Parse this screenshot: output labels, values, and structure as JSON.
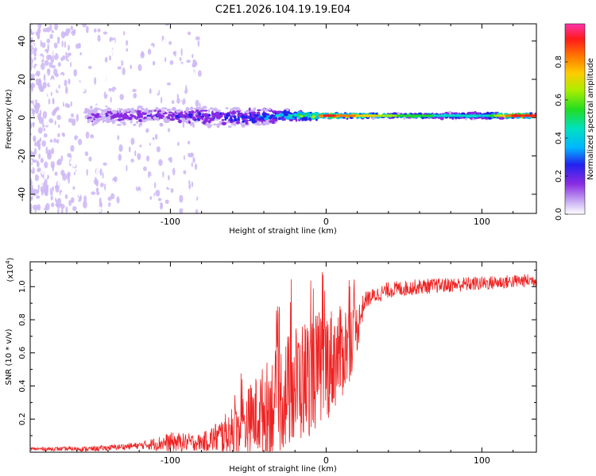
{
  "title": "C2E1.2026.104.19.19.E04",
  "chart_data": [
    {
      "type": "heatmap",
      "name": "spectrogram",
      "xlabel": "Height of straight line (km)",
      "ylabel": "Frequency (Hz)",
      "xlim": [
        -190,
        135
      ],
      "ylim": [
        -50,
        49
      ],
      "x_ticks": [
        -100,
        0,
        100
      ],
      "y_ticks": [
        -40,
        -20,
        0,
        20,
        40
      ],
      "colorbar": {
        "label": "Normalized spectral amplitude",
        "range": [
          0,
          1
        ],
        "ticks": [
          0.0,
          0.2,
          0.4,
          0.6,
          0.8
        ],
        "tick_labels": [
          "0.0",
          "0.2",
          "0.4",
          "0.6",
          "0.8"
        ],
        "stops": [
          "#ffffff",
          "#cdb6f4",
          "#8a2be2",
          "#2222ee",
          "#00b7ff",
          "#00e0c0",
          "#22dd22",
          "#aaee00",
          "#ffcc00",
          "#ff7700",
          "#ff1a1a",
          "#ff33aa"
        ]
      },
      "band_profile": [
        {
          "x": -150,
          "center_hz": 1,
          "halfwidth_hz": 6,
          "amplitude": 0.25
        },
        {
          "x": -100,
          "center_hz": 1,
          "halfwidth_hz": 5,
          "amplitude": 0.3
        },
        {
          "x": -60,
          "center_hz": 0,
          "halfwidth_hz": 6,
          "amplitude": 0.35
        },
        {
          "x": -30,
          "center_hz": 1,
          "halfwidth_hz": 4,
          "amplitude": 0.45
        },
        {
          "x": 0,
          "center_hz": 1,
          "halfwidth_hz": 1.5,
          "amplitude": 0.95
        },
        {
          "x": 50,
          "center_hz": 1,
          "halfwidth_hz": 1.2,
          "amplitude": 0.6
        },
        {
          "x": 100,
          "center_hz": 1,
          "halfwidth_hz": 2,
          "amplitude": 0.45
        },
        {
          "x": 120,
          "center_hz": 1,
          "halfwidth_hz": 1.2,
          "amplitude": 0.95
        }
      ]
    },
    {
      "type": "line",
      "name": "snr",
      "xlabel": "Height of straight line (km)",
      "ylabel": "SNR (10 * v/v)",
      "y_scale_label": "(x10",
      "y_scale_exp": "4",
      "y_scale_close": ")",
      "xlim": [
        -190,
        135
      ],
      "ylim": [
        0,
        1.15
      ],
      "x_ticks": [
        -100,
        0,
        100
      ],
      "y_ticks": [
        0.2,
        0.4,
        0.6,
        0.8,
        1.0
      ],
      "y_tick_labels": [
        "0.2",
        "0.4",
        "0.6",
        "0.8",
        "1.0"
      ],
      "line_color": "#ee2222",
      "trend": [
        {
          "x": -190,
          "y": 0.02
        },
        {
          "x": -150,
          "y": 0.02
        },
        {
          "x": -120,
          "y": 0.04
        },
        {
          "x": -100,
          "y": 0.06
        },
        {
          "x": -80,
          "y": 0.06
        },
        {
          "x": -60,
          "y": 0.12
        },
        {
          "x": -40,
          "y": 0.25
        },
        {
          "x": -20,
          "y": 0.4
        },
        {
          "x": -5,
          "y": 0.5
        },
        {
          "x": 10,
          "y": 0.6
        },
        {
          "x": 20,
          "y": 0.75
        },
        {
          "x": 25,
          "y": 0.92
        },
        {
          "x": 40,
          "y": 0.98
        },
        {
          "x": 60,
          "y": 1.0
        },
        {
          "x": 100,
          "y": 1.02
        },
        {
          "x": 135,
          "y": 1.04
        }
      ],
      "noise": [
        {
          "x": -190,
          "a": 0.01
        },
        {
          "x": -120,
          "a": 0.02
        },
        {
          "x": -100,
          "a": 0.06
        },
        {
          "x": -80,
          "a": 0.05
        },
        {
          "x": -60,
          "a": 0.15
        },
        {
          "x": -40,
          "a": 0.28
        },
        {
          "x": -20,
          "a": 0.38
        },
        {
          "x": 0,
          "a": 0.35
        },
        {
          "x": 15,
          "a": 0.25
        },
        {
          "x": 25,
          "a": 0.05
        },
        {
          "x": 135,
          "a": 0.04
        }
      ]
    }
  ]
}
